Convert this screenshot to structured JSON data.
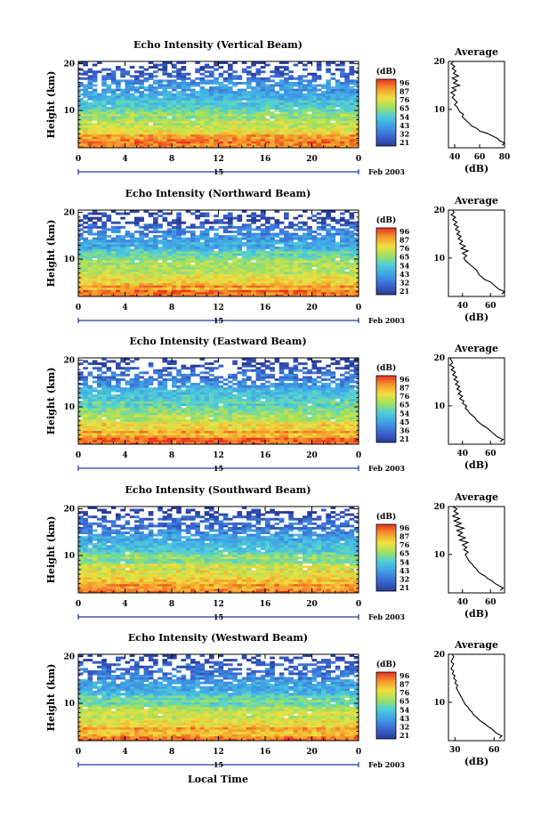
{
  "figure": {
    "xlabel": "Local Time",
    "date_label": "Feb 2003",
    "day_label": "15",
    "height_label": "Height (km)",
    "colorbar_unit": "(dB)",
    "average_title": "Average",
    "average_xlabel": "(dB)"
  },
  "chart_data": [
    {
      "type": "heatmap",
      "title": "Echo Intensity (Vertical Beam)",
      "xlabel": "Local Time",
      "ylabel": "Height (km)",
      "x_ticks": [
        "0",
        "4",
        "8",
        "12",
        "16",
        "20",
        "0"
      ],
      "xlim": [
        0,
        24
      ],
      "y_ticks": [
        "10",
        "20"
      ],
      "ylim": [
        2,
        20.5
      ],
      "colorbar": {
        "unit": "(dB)",
        "ticks": [
          "96",
          "87",
          "76",
          "65",
          "54",
          "43",
          "32",
          "21"
        ],
        "range": [
          21,
          96
        ]
      },
      "average": {
        "title": "Average",
        "xlabel": "(dB)",
        "x_ticks": [
          "40",
          "60",
          "80"
        ],
        "xlim": [
          35,
          80
        ],
        "ylim": [
          2,
          20
        ],
        "profile": [
          [
            78,
            2.5
          ],
          [
            80,
            3
          ],
          [
            76,
            3.5
          ],
          [
            74,
            4
          ],
          [
            70,
            4.5
          ],
          [
            66,
            5
          ],
          [
            60,
            5.5
          ],
          [
            58,
            6
          ],
          [
            54,
            6.5
          ],
          [
            52,
            7
          ],
          [
            50,
            7.5
          ],
          [
            48,
            8
          ],
          [
            46,
            8.5
          ],
          [
            47,
            9
          ],
          [
            44,
            9.5
          ],
          [
            43,
            10
          ],
          [
            42,
            10.5
          ],
          [
            40,
            11
          ],
          [
            42,
            11.5
          ],
          [
            40,
            12
          ],
          [
            38,
            12.5
          ],
          [
            40,
            13
          ],
          [
            37,
            13.5
          ],
          [
            41,
            14
          ],
          [
            38,
            14.5
          ],
          [
            44,
            15
          ],
          [
            39,
            15.5
          ],
          [
            42,
            16
          ],
          [
            38,
            16.5
          ],
          [
            43,
            17
          ],
          [
            39,
            17.5
          ],
          [
            41,
            18
          ],
          [
            38,
            18.5
          ],
          [
            40,
            19
          ],
          [
            37,
            19.5
          ],
          [
            39,
            20
          ]
        ]
      }
    },
    {
      "type": "heatmap",
      "title": "Echo Intensity (Northward Beam)",
      "xlabel": "Local Time",
      "ylabel": "Height (km)",
      "x_ticks": [
        "0",
        "4",
        "8",
        "12",
        "16",
        "20",
        "0"
      ],
      "xlim": [
        0,
        24
      ],
      "y_ticks": [
        "10",
        "20"
      ],
      "ylim": [
        2,
        20.5
      ],
      "colorbar": {
        "unit": "(dB)",
        "ticks": [
          "96",
          "87",
          "76",
          "65",
          "54",
          "43",
          "32",
          "21"
        ],
        "range": [
          21,
          96
        ]
      },
      "average": {
        "title": "Average",
        "xlabel": "(dB)",
        "x_ticks": [
          "40",
          "60"
        ],
        "xlim": [
          30,
          70
        ],
        "ylim": [
          2,
          20
        ],
        "profile": [
          [
            68,
            2.5
          ],
          [
            70,
            3
          ],
          [
            66,
            3.5
          ],
          [
            64,
            4
          ],
          [
            62,
            4.5
          ],
          [
            60,
            5
          ],
          [
            56,
            5.5
          ],
          [
            54,
            6
          ],
          [
            52,
            6.5
          ],
          [
            51,
            7
          ],
          [
            50,
            7.5
          ],
          [
            48,
            8
          ],
          [
            46,
            8.5
          ],
          [
            44,
            9
          ],
          [
            42,
            9.5
          ],
          [
            41,
            10
          ],
          [
            43,
            10.5
          ],
          [
            40,
            11
          ],
          [
            44,
            11.5
          ],
          [
            39,
            12
          ],
          [
            42,
            12.5
          ],
          [
            38,
            13
          ],
          [
            40,
            13.5
          ],
          [
            37,
            14
          ],
          [
            39,
            14.5
          ],
          [
            36,
            15
          ],
          [
            38,
            15.5
          ],
          [
            35,
            16
          ],
          [
            37,
            16.5
          ],
          [
            34,
            17
          ],
          [
            36,
            17.5
          ],
          [
            33,
            18
          ],
          [
            35,
            18.5
          ],
          [
            32,
            19
          ],
          [
            34,
            19.5
          ],
          [
            33,
            20
          ]
        ]
      }
    },
    {
      "type": "heatmap",
      "title": "Echo Intensity (Eastward Beam)",
      "xlabel": "Local Time",
      "ylabel": "Height (km)",
      "x_ticks": [
        "0",
        "4",
        "8",
        "12",
        "16",
        "20",
        "0"
      ],
      "xlim": [
        0,
        24
      ],
      "y_ticks": [
        "10",
        "20"
      ],
      "ylim": [
        2,
        20.5
      ],
      "colorbar": {
        "unit": "(dB)",
        "ticks": [
          "96",
          "87",
          "76",
          "65",
          "54",
          "45",
          "36",
          "21"
        ],
        "range": [
          21,
          96
        ]
      },
      "average": {
        "title": "Average",
        "xlabel": "(dB)",
        "x_ticks": [
          "40",
          "60"
        ],
        "xlim": [
          30,
          70
        ],
        "ylim": [
          2,
          20
        ],
        "profile": [
          [
            67,
            2.5
          ],
          [
            69,
            3
          ],
          [
            65,
            3.5
          ],
          [
            63,
            4
          ],
          [
            61,
            4.5
          ],
          [
            59,
            5
          ],
          [
            57,
            5.5
          ],
          [
            54,
            6
          ],
          [
            52,
            6.5
          ],
          [
            50,
            7
          ],
          [
            49,
            7.5
          ],
          [
            47,
            8
          ],
          [
            45,
            8.5
          ],
          [
            44,
            9
          ],
          [
            42,
            9.5
          ],
          [
            43,
            10
          ],
          [
            40,
            10.5
          ],
          [
            41,
            11
          ],
          [
            38,
            11.5
          ],
          [
            40,
            12
          ],
          [
            37,
            12.5
          ],
          [
            39,
            13
          ],
          [
            36,
            13.5
          ],
          [
            38,
            14
          ],
          [
            35,
            14.5
          ],
          [
            37,
            15
          ],
          [
            34,
            15.5
          ],
          [
            36,
            16
          ],
          [
            33,
            16.5
          ],
          [
            35,
            17
          ],
          [
            32,
            17.5
          ],
          [
            34,
            18
          ],
          [
            31,
            18.5
          ],
          [
            33,
            19
          ],
          [
            32,
            19.5
          ],
          [
            31,
            20
          ]
        ]
      }
    },
    {
      "type": "heatmap",
      "title": "Echo Intensity (Southward Beam)",
      "xlabel": "Local Time",
      "ylabel": "Height (km)",
      "x_ticks": [
        "0",
        "4",
        "8",
        "12",
        "16",
        "20",
        "0"
      ],
      "xlim": [
        0,
        24
      ],
      "y_ticks": [
        "10",
        "20"
      ],
      "ylim": [
        2,
        20.5
      ],
      "colorbar": {
        "unit": "(dB)",
        "ticks": [
          "96",
          "87",
          "76",
          "65",
          "54",
          "43",
          "32",
          "21"
        ],
        "range": [
          21,
          96
        ]
      },
      "average": {
        "title": "Average",
        "xlabel": "(dB)",
        "x_ticks": [
          "40",
          "60"
        ],
        "xlim": [
          30,
          70
        ],
        "ylim": [
          2,
          20
        ],
        "profile": [
          [
            67,
            2.5
          ],
          [
            69,
            3
          ],
          [
            66,
            3.5
          ],
          [
            63,
            4
          ],
          [
            61,
            4.5
          ],
          [
            58,
            5
          ],
          [
            56,
            5.5
          ],
          [
            53,
            6
          ],
          [
            51,
            6.5
          ],
          [
            50,
            7
          ],
          [
            48,
            7.5
          ],
          [
            47,
            8
          ],
          [
            45,
            8.5
          ],
          [
            44,
            9
          ],
          [
            43,
            9.5
          ],
          [
            42,
            10
          ],
          [
            44,
            10.5
          ],
          [
            41,
            11
          ],
          [
            43,
            11.5
          ],
          [
            40,
            12
          ],
          [
            44,
            12.5
          ],
          [
            38,
            13
          ],
          [
            42,
            13.5
          ],
          [
            37,
            14
          ],
          [
            40,
            14.5
          ],
          [
            36,
            15
          ],
          [
            41,
            15.5
          ],
          [
            35,
            16
          ],
          [
            39,
            16.5
          ],
          [
            34,
            17
          ],
          [
            38,
            17.5
          ],
          [
            33,
            18
          ],
          [
            37,
            18.5
          ],
          [
            34,
            19
          ],
          [
            36,
            19.5
          ],
          [
            33,
            20
          ]
        ]
      }
    },
    {
      "type": "heatmap",
      "title": "Echo Intensity (Westward Beam)",
      "xlabel": "Local Time",
      "ylabel": "Height (km)",
      "x_ticks": [
        "0",
        "4",
        "8",
        "12",
        "16",
        "20",
        "0"
      ],
      "xlim": [
        0,
        24
      ],
      "y_ticks": [
        "10",
        "20"
      ],
      "ylim": [
        2,
        20.5
      ],
      "colorbar": {
        "unit": "(dB)",
        "ticks": [
          "96",
          "87",
          "76",
          "65",
          "54",
          "43",
          "32",
          "21"
        ],
        "range": [
          21,
          96
        ]
      },
      "average": {
        "title": "Average",
        "xlabel": "(dB)",
        "x_ticks": [
          "30",
          "60"
        ],
        "xlim": [
          25,
          68
        ],
        "ylim": [
          2,
          20
        ],
        "profile": [
          [
            64,
            2.5
          ],
          [
            66,
            3
          ],
          [
            62,
            3.5
          ],
          [
            60,
            4
          ],
          [
            58,
            4.5
          ],
          [
            55,
            5
          ],
          [
            53,
            5.5
          ],
          [
            50,
            6
          ],
          [
            48,
            6.5
          ],
          [
            46,
            7
          ],
          [
            44,
            7.5
          ],
          [
            43,
            8
          ],
          [
            41,
            8.5
          ],
          [
            40,
            9
          ],
          [
            38,
            9.5
          ],
          [
            37,
            10
          ],
          [
            36,
            10.5
          ],
          [
            35,
            11
          ],
          [
            34,
            11.5
          ],
          [
            33,
            12
          ],
          [
            32,
            12.5
          ],
          [
            31,
            13
          ],
          [
            32,
            13.5
          ],
          [
            30,
            14
          ],
          [
            31,
            14.5
          ],
          [
            29,
            15
          ],
          [
            30,
            15.5
          ],
          [
            28,
            16
          ],
          [
            29,
            16.5
          ],
          [
            27,
            17
          ],
          [
            28,
            17.5
          ],
          [
            29,
            18
          ],
          [
            27,
            18.5
          ],
          [
            28,
            19
          ],
          [
            29,
            19.5
          ],
          [
            28,
            20
          ]
        ]
      }
    }
  ]
}
